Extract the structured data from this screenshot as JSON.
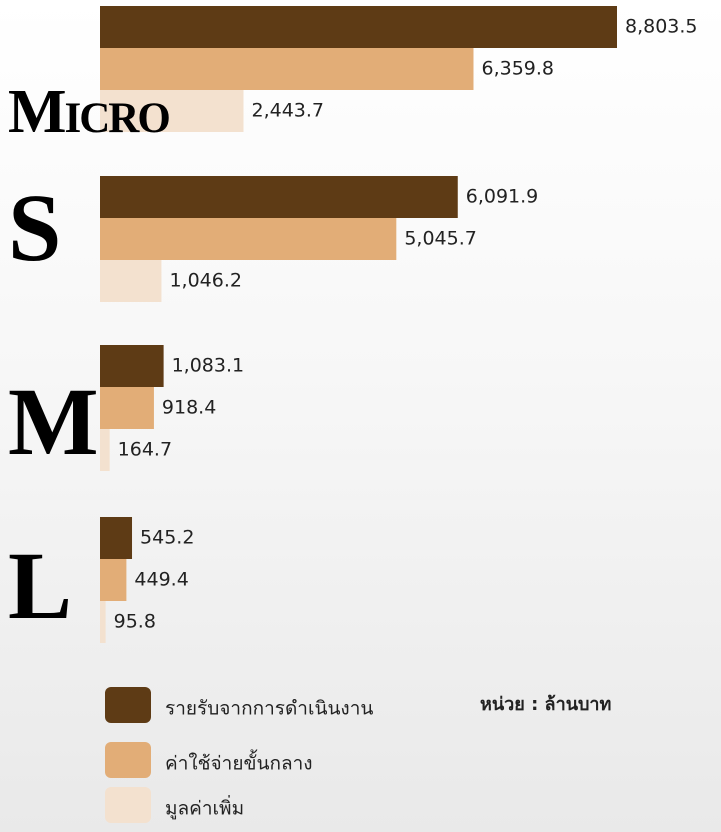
{
  "chart_data": {
    "type": "bar",
    "orientation": "horizontal",
    "categories": [
      "Micro",
      "S",
      "M",
      "L"
    ],
    "series": [
      {
        "name": "รายรับจากการดำเนินงาน",
        "color": "#5e3b15",
        "values": [
          8803.5,
          6091.9,
          1083.1,
          545.2
        ],
        "value_labels": [
          "8,803.5",
          "6,091.9",
          "1,083.1",
          "545.2"
        ]
      },
      {
        "name": "ค่าใช้จ่ายขั้นกลาง",
        "color": "#e2ad77",
        "values": [
          6359.8,
          5045.7,
          918.4,
          449.4
        ],
        "value_labels": [
          "6,359.8",
          "5,045.7",
          "918.4",
          "449.4"
        ]
      },
      {
        "name": "มูลค่าเพิ่ม",
        "color": "#f3e1cf",
        "values": [
          2443.7,
          1046.2,
          164.7,
          95.8
        ],
        "value_labels": [
          "2,443.7",
          "1,046.2",
          "164.7",
          "95.8"
        ]
      }
    ],
    "unit_note": "หน่วย : ล้านบาท"
  }
}
